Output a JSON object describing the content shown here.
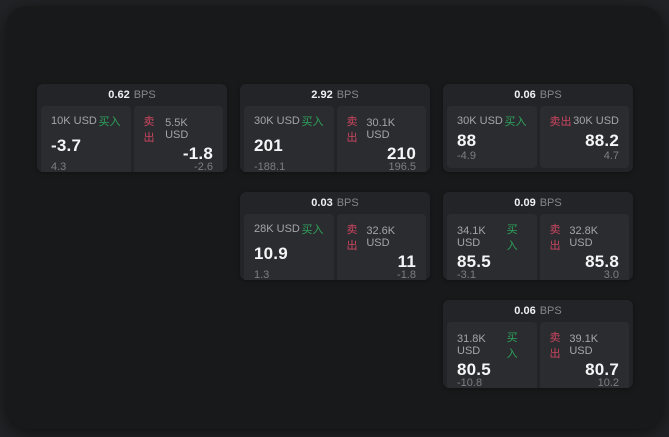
{
  "labels": {
    "bps_unit": "BPS",
    "buy": "买入",
    "sell": "卖出"
  },
  "colors": {
    "buy_green": "#2ea35c",
    "sell_red": "#cb4560",
    "surface": "#18191b",
    "card": "#232428",
    "panel": "#2b2c30"
  },
  "cards": [
    {
      "bps": "0.62",
      "buy": {
        "size": "10K USD",
        "value": "-3.7",
        "sub": "4.3"
      },
      "sell": {
        "size": "5.5K USD",
        "value": "-1.8",
        "sub": "-2.6"
      }
    },
    {
      "bps": "2.92",
      "buy": {
        "size": "30K USD",
        "value": "201",
        "sub": "-188.1"
      },
      "sell": {
        "size": "30.1K USD",
        "value": "210",
        "sub": "196.5"
      }
    },
    {
      "bps": "0.06",
      "buy": {
        "size": "30K USD",
        "value": "88",
        "sub": "-4.9"
      },
      "sell": {
        "size": "30K USD",
        "value": "88.2",
        "sub": "4.7"
      }
    },
    {
      "bps": "0.03",
      "buy": {
        "size": "28K USD",
        "value": "10.9",
        "sub": "1.3"
      },
      "sell": {
        "size": "32.6K USD",
        "value": "11",
        "sub": "-1.8"
      }
    },
    {
      "bps": "0.09",
      "buy": {
        "size": "34.1K USD",
        "value": "85.5",
        "sub": "-3.1"
      },
      "sell": {
        "size": "32.8K USD",
        "value": "85.8",
        "sub": "3.0"
      }
    },
    {
      "bps": "0.06",
      "buy": {
        "size": "31.8K USD",
        "value": "80.5",
        "sub": "-10.8"
      },
      "sell": {
        "size": "39.1K USD",
        "value": "80.7",
        "sub": "10.2"
      }
    }
  ]
}
